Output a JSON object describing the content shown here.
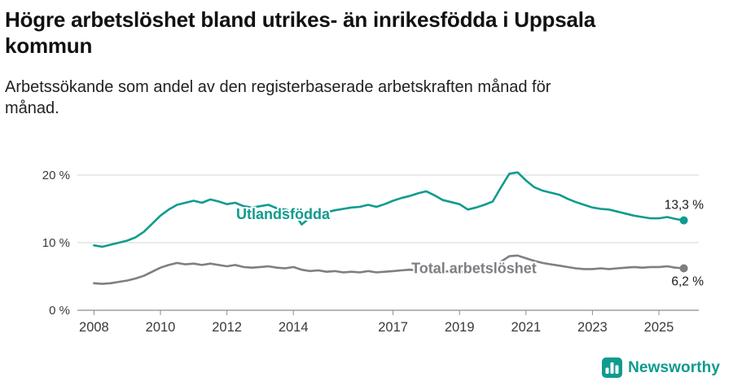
{
  "header": {
    "title_lines": [
      "Högre arbetslöshet bland utrikes- än inrikesfödda i Uppsala",
      "kommun"
    ],
    "subtitle_lines": [
      "Arbetssökande som andel av den registerbaserade arbetskraften månad för",
      "månad."
    ]
  },
  "colors": {
    "accent_teal": "#0f9b8e",
    "line_gray": "#7e7e83",
    "axis_text": "#3a3a3a",
    "gridline": "#d4d4d4",
    "axis_line": "#8c8c8c",
    "value_label": "#1a1a1a"
  },
  "chart_data": {
    "type": "line",
    "title": "Högre arbetslöshet bland utrikes- än inrikesfödda i Uppsala kommun",
    "subtitle": "Arbetssökande som andel av den registerbaserade arbetskraften månad för månad.",
    "xlabel": "",
    "ylabel": "",
    "grid": "horizontal",
    "xlim": [
      2007.5,
      2026.2
    ],
    "ylim": [
      0,
      20
    ],
    "yticks": [
      {
        "value": 0,
        "label": "0 %"
      },
      {
        "value": 10,
        "label": "10 %"
      },
      {
        "value": 20,
        "label": "20 %"
      }
    ],
    "xticks": [
      {
        "value": 2008,
        "label": "2008"
      },
      {
        "value": 2010,
        "label": "2010"
      },
      {
        "value": 2012,
        "label": "2012"
      },
      {
        "value": 2014,
        "label": "2014"
      },
      {
        "value": 2017,
        "label": "2017"
      },
      {
        "value": 2019,
        "label": "2019"
      },
      {
        "value": 2021,
        "label": "2021"
      },
      {
        "value": 2023,
        "label": "2023"
      },
      {
        "value": 2025,
        "label": "2025"
      }
    ],
    "x": [
      2008.0,
      2008.25,
      2008.5,
      2008.75,
      2009.0,
      2009.25,
      2009.5,
      2009.75,
      2010.0,
      2010.25,
      2010.5,
      2010.75,
      2011.0,
      2011.25,
      2011.5,
      2011.75,
      2012.0,
      2012.25,
      2012.5,
      2012.75,
      2013.0,
      2013.25,
      2013.5,
      2013.75,
      2014.0,
      2014.25,
      2014.5,
      2014.75,
      2015.0,
      2015.25,
      2015.5,
      2015.75,
      2016.0,
      2016.25,
      2016.5,
      2016.75,
      2017.0,
      2017.25,
      2017.5,
      2017.75,
      2018.0,
      2018.25,
      2018.5,
      2018.75,
      2019.0,
      2019.25,
      2019.5,
      2019.75,
      2020.0,
      2020.25,
      2020.5,
      2020.75,
      2021.0,
      2021.25,
      2021.5,
      2021.75,
      2022.0,
      2022.25,
      2022.5,
      2022.75,
      2023.0,
      2023.25,
      2023.5,
      2023.75,
      2024.0,
      2024.25,
      2024.5,
      2024.75,
      2025.0,
      2025.25,
      2025.5,
      2025.75
    ],
    "series": [
      {
        "id": "utlandsfodda",
        "name": "Utlandsfödda",
        "color": "#0f9b8e",
        "end_label": "13,3 %",
        "end_label_dy": -14,
        "label_x": 2012.28,
        "label_y": 13.5,
        "values": [
          9.6,
          9.4,
          9.7,
          10.0,
          10.3,
          10.8,
          11.6,
          12.8,
          14.0,
          14.9,
          15.6,
          15.9,
          16.2,
          15.9,
          16.4,
          16.1,
          15.7,
          15.9,
          15.4,
          15.2,
          15.4,
          15.6,
          15.1,
          14.9,
          14.6,
          12.7,
          13.7,
          14.2,
          14.5,
          14.8,
          15.0,
          15.2,
          15.3,
          15.6,
          15.3,
          15.7,
          16.2,
          16.6,
          16.9,
          17.3,
          17.6,
          17.0,
          16.3,
          16.0,
          15.7,
          14.9,
          15.2,
          15.6,
          16.1,
          18.2,
          20.2,
          20.4,
          19.2,
          18.2,
          17.7,
          17.4,
          17.1,
          16.5,
          16.0,
          15.6,
          15.2,
          15.0,
          14.9,
          14.6,
          14.3,
          14.0,
          13.8,
          13.6,
          13.6,
          13.8,
          13.5,
          13.3
        ]
      },
      {
        "id": "total-arbetsloshet",
        "name": "Total arbetslöshet",
        "color": "#7e7e83",
        "end_label": "6,2 %",
        "end_label_dy": 21,
        "label_x": 2017.55,
        "label_y": 5.5,
        "values": [
          4.0,
          3.9,
          4.0,
          4.2,
          4.4,
          4.7,
          5.1,
          5.7,
          6.3,
          6.7,
          7.0,
          6.8,
          6.9,
          6.7,
          6.9,
          6.7,
          6.5,
          6.7,
          6.4,
          6.3,
          6.4,
          6.5,
          6.3,
          6.2,
          6.4,
          6.0,
          5.8,
          5.9,
          5.7,
          5.8,
          5.6,
          5.7,
          5.6,
          5.8,
          5.6,
          5.7,
          5.8,
          5.9,
          6.0,
          5.9,
          5.8,
          5.9,
          5.7,
          5.8,
          5.7,
          5.6,
          5.8,
          5.9,
          6.0,
          7.2,
          8.0,
          8.1,
          7.7,
          7.3,
          7.0,
          6.8,
          6.6,
          6.4,
          6.2,
          6.1,
          6.1,
          6.2,
          6.1,
          6.2,
          6.3,
          6.4,
          6.3,
          6.4,
          6.4,
          6.5,
          6.3,
          6.2
        ]
      }
    ]
  },
  "footer": {
    "brand": "Newsworthy"
  }
}
